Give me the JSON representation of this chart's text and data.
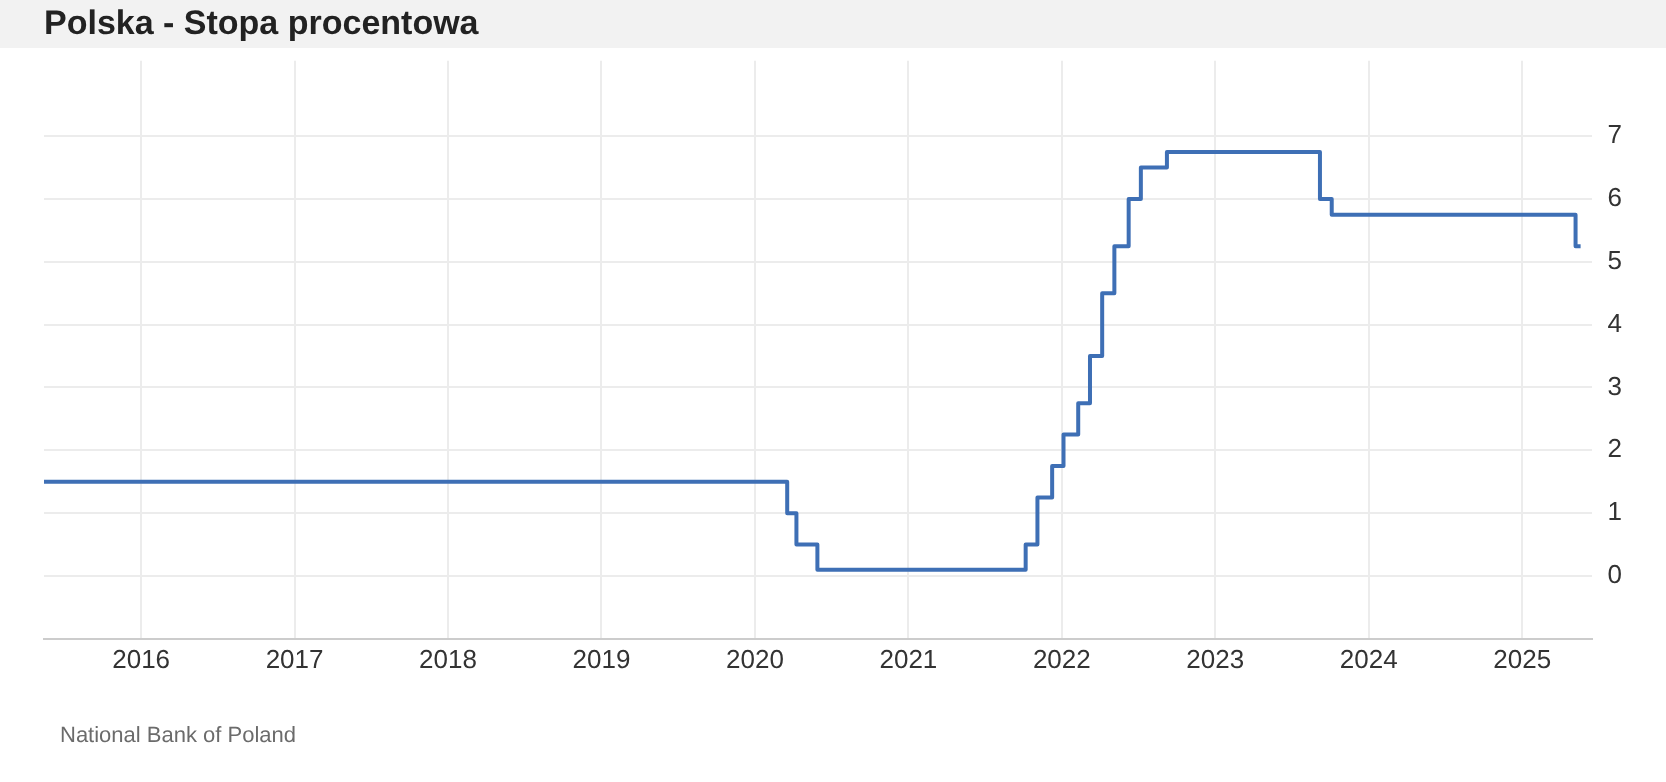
{
  "chart_data": {
    "type": "step",
    "title": "Polska - Stopa procentowa",
    "annotations": [
      "National Bank of Poland"
    ],
    "x": [
      "2015-05-15",
      "2020-03-18",
      "2020-04-09",
      "2020-05-29",
      "2021-10-07",
      "2021-11-04",
      "2021-12-09",
      "2022-01-05",
      "2022-02-09",
      "2022-03-09",
      "2022-04-07",
      "2022-05-06",
      "2022-06-09",
      "2022-07-08",
      "2022-09-08",
      "2023-09-07",
      "2023-10-05",
      "2025-05-08",
      "2025-05-20"
    ],
    "series": [
      {
        "color": "#3e6fb5",
        "values": [
          1.5,
          1.0,
          0.5,
          0.1,
          0.5,
          1.25,
          1.75,
          2.25,
          2.75,
          3.5,
          4.5,
          5.25,
          6.0,
          6.5,
          6.75,
          6.0,
          5.75,
          5.25,
          5.25
        ]
      }
    ],
    "xlim": [
      "2015-05-15",
      "2025-06-15"
    ],
    "xticks": [
      "2016",
      "2017",
      "2018",
      "2019",
      "2020",
      "2021",
      "2022",
      "2023",
      "2024",
      "2025"
    ],
    "ylim": [
      -1,
      8.2
    ],
    "yticks": [
      0,
      1,
      2,
      3,
      4,
      5,
      6,
      7
    ],
    "grid": true,
    "legend": false
  }
}
